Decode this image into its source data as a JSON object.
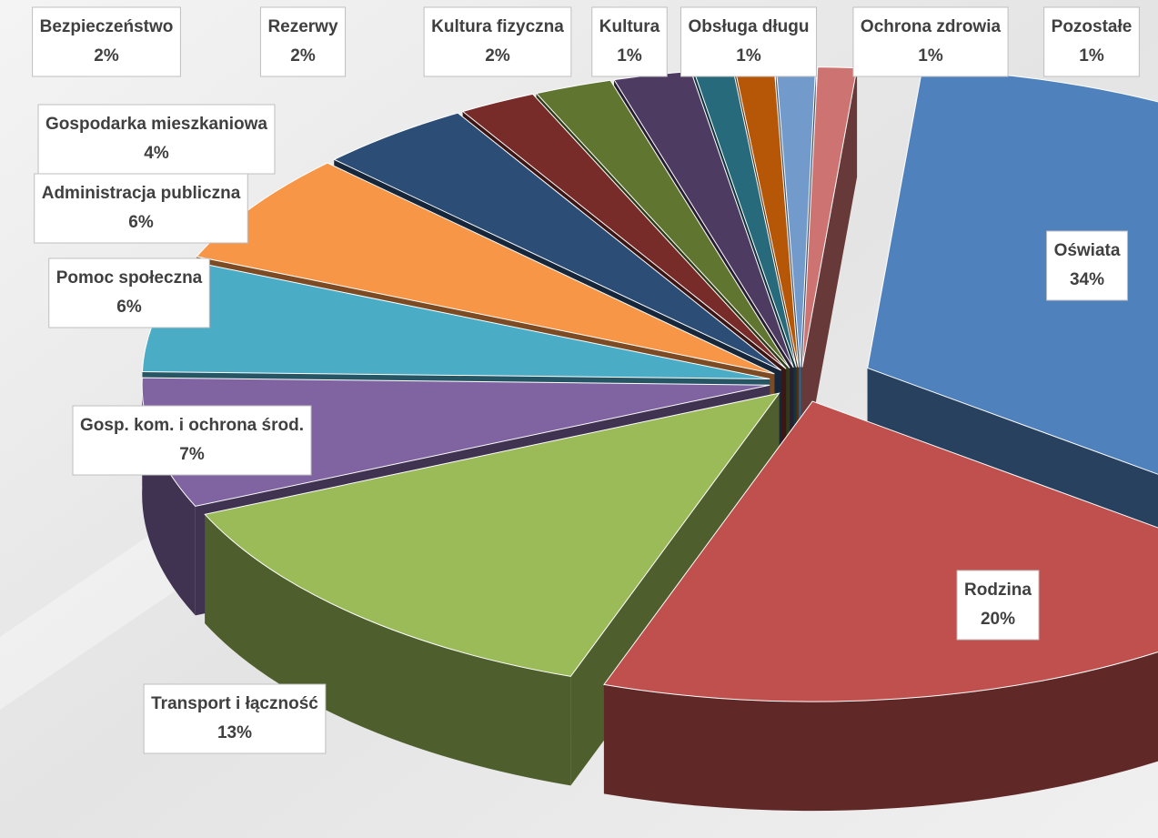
{
  "chart_data": {
    "type": "pie3d",
    "categories": [
      "Oświata",
      "Rodzina",
      "Transport i łączność",
      "Gosp. kom. i ochrona środ.",
      "Pomoc społeczna",
      "Administracja publiczna",
      "Gospodarka mieszkaniowa",
      "Bezpieczeństwo",
      "Rezerwy",
      "Kultura fizyczna",
      "Kultura",
      "Obsługa długu",
      "Ochrona zdrowia",
      "Pozostałe"
    ],
    "values": [
      34,
      20,
      13,
      7,
      6,
      6,
      4,
      2,
      2,
      2,
      1,
      1,
      1,
      1
    ],
    "value_labels": [
      "34%",
      "20%",
      "13%",
      "7%",
      "6%",
      "6%",
      "4%",
      "2%",
      "2%",
      "2%",
      "1%",
      "1%",
      "1%",
      "1%"
    ],
    "colors": [
      "#4f81bd",
      "#c0504d",
      "#9bbb59",
      "#8064a2",
      "#4bacc6",
      "#f79646",
      "#2c4d75",
      "#772c2a",
      "#5f7530",
      "#4d3b62",
      "#276a7c",
      "#b65708",
      "#729aca",
      "#cd7371"
    ]
  }
}
